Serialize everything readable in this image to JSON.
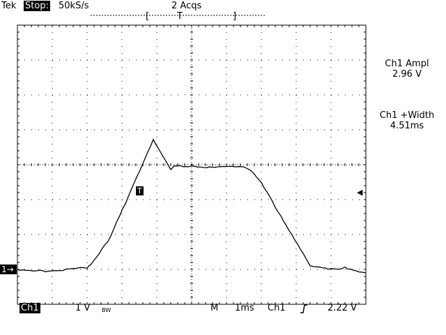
{
  "header": {
    "brand": "Tek",
    "state": "Stop:",
    "sample_rate": "50kS/s",
    "acquisitions": "2 Acqs",
    "trigger_marker": "T",
    "bracket_left": "[",
    "bracket_right": "]"
  },
  "measurements": [
    {
      "label": "Ch1 Ampl",
      "value": "2.96 V"
    },
    {
      "label": "Ch1 +Width",
      "value": "4.51ms"
    }
  ],
  "footer": {
    "channel": "Ch1",
    "volts_per_div": "1 V",
    "bw_limit": "BW",
    "mode": "M",
    "time_per_div": "1ms",
    "trigger_source": "Ch1",
    "trigger_slope": "rising-edge-icon",
    "trigger_level": "2.22 V"
  },
  "markers": {
    "channel_ground": "1",
    "trigger_point": "T"
  },
  "colors": {
    "trace": "#000000",
    "background": "#ffffff"
  },
  "chart_data": {
    "type": "line",
    "title": "",
    "xlabel": "",
    "ylabel": "",
    "x_unit": "divisions",
    "y_unit": "V",
    "xlim": [
      -5,
      5
    ],
    "ylim": [
      -1,
      7
    ],
    "grid": true,
    "series": [
      {
        "x": [
          -5.0,
          -4.2,
          -3.0,
          -2.9,
          -2.4,
          -1.9,
          -1.5,
          -1.1,
          -0.6,
          -0.5,
          0.0,
          0.5,
          1.0,
          1.5,
          1.7,
          2.0,
          2.4,
          2.8,
          3.2,
          3.4,
          3.6,
          4.0,
          4.4,
          4.8,
          5.0
        ],
        "y": [
          0.0,
          -0.05,
          0.05,
          0.15,
          0.8,
          1.9,
          2.8,
          3.7,
          2.85,
          2.95,
          2.95,
          2.93,
          2.97,
          2.95,
          2.85,
          2.5,
          1.8,
          1.1,
          0.45,
          0.1,
          0.05,
          0.0,
          0.05,
          -0.05,
          -0.1
        ]
      }
    ]
  }
}
